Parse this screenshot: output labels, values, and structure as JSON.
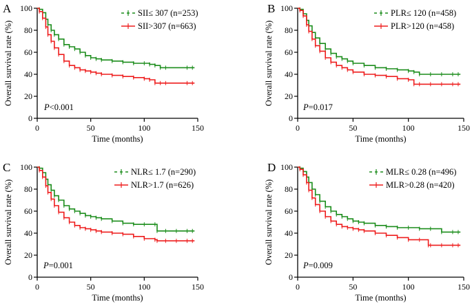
{
  "colors": {
    "green": "#1a8c1a",
    "red": "#ee1c1c",
    "axis": "#000000"
  },
  "chart_data": [
    {
      "panel_letter": "A",
      "type": "line",
      "subtype": "kaplan-meier",
      "xlabel": "Time (months)",
      "ylabel": "Overall survival rate  (%)",
      "xlim": [
        0,
        150
      ],
      "ylim": [
        0,
        100
      ],
      "xticks": [
        "0",
        "50",
        "100",
        "150"
      ],
      "yticks": [
        "0",
        "20",
        "40",
        "60",
        "80",
        "100"
      ],
      "p_value": {
        "prefix": "P",
        "text": "<0.001"
      },
      "legend_position": "top-right",
      "series": [
        {
          "name": "SII≤ 307 (n=253)",
          "color": "#1a8c1a",
          "dashed_legend": true,
          "x": [
            0,
            2,
            5,
            8,
            10,
            13,
            16,
            20,
            25,
            30,
            35,
            40,
            45,
            50,
            55,
            60,
            70,
            80,
            90,
            100,
            105,
            110,
            115,
            120,
            140,
            145,
            147
          ],
          "y": [
            100,
            99,
            96,
            90,
            85,
            80,
            76,
            72,
            67,
            65,
            63,
            60,
            57,
            55,
            54,
            53,
            52,
            51,
            50,
            50,
            49,
            48,
            46,
            46,
            46,
            46,
            46
          ]
        },
        {
          "name": "SII>307 (n=663)",
          "color": "#ee1c1c",
          "dashed_legend": false,
          "x": [
            0,
            2,
            5,
            8,
            10,
            13,
            16,
            20,
            25,
            30,
            35,
            40,
            45,
            50,
            55,
            60,
            70,
            80,
            90,
            100,
            105,
            110,
            115,
            120,
            140,
            145,
            147
          ],
          "y": [
            100,
            97,
            91,
            83,
            76,
            70,
            64,
            58,
            52,
            48,
            46,
            44,
            43,
            42,
            41,
            40,
            39,
            38,
            37,
            36,
            35,
            32,
            32,
            32,
            32,
            32,
            32
          ]
        }
      ]
    },
    {
      "panel_letter": "B",
      "type": "line",
      "subtype": "kaplan-meier",
      "xlabel": "Time (months)",
      "ylabel": "Overall survival rate  (%)",
      "xlim": [
        0,
        150
      ],
      "ylim": [
        0,
        100
      ],
      "xticks": [
        "0",
        "50",
        "100",
        "150"
      ],
      "yticks": [
        "0",
        "20",
        "40",
        "60",
        "80",
        "100"
      ],
      "p_value": {
        "prefix": "P",
        "text": "=0.017"
      },
      "legend_position": "top-right",
      "series": [
        {
          "name": "PLR≤ 120 (n=458)",
          "color": "#1a8c1a",
          "dashed_legend": true,
          "x": [
            0,
            2,
            5,
            8,
            10,
            13,
            16,
            20,
            25,
            30,
            35,
            40,
            45,
            50,
            60,
            70,
            80,
            90,
            100,
            105,
            110,
            120,
            130,
            140,
            145,
            147
          ],
          "y": [
            100,
            99,
            95,
            89,
            84,
            78,
            73,
            68,
            63,
            59,
            56,
            54,
            52,
            50,
            48,
            46,
            45,
            44,
            43,
            42,
            40,
            40,
            40,
            40,
            40,
            40
          ]
        },
        {
          "name": "PLR>120 (n=458)",
          "color": "#ee1c1c",
          "dashed_legend": false,
          "x": [
            0,
            2,
            5,
            8,
            10,
            13,
            16,
            20,
            25,
            30,
            35,
            40,
            45,
            50,
            60,
            70,
            80,
            90,
            100,
            105,
            110,
            120,
            130,
            140,
            145,
            147
          ],
          "y": [
            100,
            98,
            93,
            85,
            79,
            72,
            66,
            61,
            55,
            51,
            48,
            46,
            44,
            42,
            40,
            39,
            38,
            36,
            35,
            31,
            31,
            31,
            31,
            31,
            31,
            31
          ]
        }
      ]
    },
    {
      "panel_letter": "C",
      "type": "line",
      "subtype": "kaplan-meier",
      "xlabel": "Time (months)",
      "ylabel": "Overall survival rate  (%)",
      "xlim": [
        0,
        150
      ],
      "ylim": [
        0,
        100
      ],
      "xticks": [
        "0",
        "50",
        "100",
        "150"
      ],
      "yticks": [
        "0",
        "20",
        "40",
        "60",
        "80",
        "100"
      ],
      "p_value": {
        "prefix": "P",
        "text": "=0.001"
      },
      "legend_position": "top-right",
      "series": [
        {
          "name": "NLR≤ 1.7 (n=290)",
          "color": "#1a8c1a",
          "dashed_legend": true,
          "x": [
            0,
            2,
            5,
            8,
            10,
            13,
            16,
            20,
            25,
            30,
            35,
            40,
            45,
            50,
            55,
            60,
            70,
            80,
            90,
            100,
            110,
            112,
            120,
            130,
            140,
            145,
            147
          ],
          "y": [
            100,
            99,
            95,
            89,
            84,
            79,
            74,
            70,
            65,
            62,
            60,
            58,
            56,
            55,
            54,
            53,
            51,
            49,
            48,
            48,
            48,
            42,
            42,
            42,
            42,
            42,
            42
          ]
        },
        {
          "name": "NLR>1.7 (n=626)",
          "color": "#ee1c1c",
          "dashed_legend": false,
          "x": [
            0,
            2,
            5,
            8,
            10,
            13,
            16,
            20,
            25,
            30,
            35,
            40,
            45,
            50,
            55,
            60,
            70,
            80,
            90,
            100,
            110,
            112,
            120,
            130,
            140,
            145,
            147
          ],
          "y": [
            100,
            97,
            91,
            83,
            77,
            71,
            65,
            59,
            54,
            50,
            47,
            45,
            44,
            43,
            42,
            41,
            40,
            39,
            37,
            35,
            34,
            33,
            33,
            33,
            33,
            33,
            33
          ]
        }
      ]
    },
    {
      "panel_letter": "D",
      "type": "line",
      "subtype": "kaplan-meier",
      "xlabel": "Time (months)",
      "ylabel": "Overall survival rate  (%)",
      "xlim": [
        0,
        150
      ],
      "ylim": [
        0,
        100
      ],
      "xticks": [
        "0",
        "50",
        "100",
        "150"
      ],
      "yticks": [
        "0",
        "20",
        "40",
        "60",
        "80",
        "100"
      ],
      "p_value": {
        "prefix": "P",
        "text": "=0.009"
      },
      "legend_position": "top-right",
      "series": [
        {
          "name": "MLR≤ 0.28 (n=496)",
          "color": "#1a8c1a",
          "dashed_legend": true,
          "x": [
            0,
            2,
            5,
            8,
            10,
            13,
            16,
            20,
            25,
            30,
            35,
            40,
            45,
            50,
            55,
            60,
            70,
            80,
            90,
            100,
            110,
            120,
            130,
            140,
            145,
            147
          ],
          "y": [
            100,
            99,
            96,
            91,
            86,
            80,
            75,
            69,
            64,
            60,
            57,
            55,
            53,
            51,
            50,
            49,
            47,
            46,
            45,
            45,
            44,
            44,
            41,
            41,
            41,
            41
          ]
        },
        {
          "name": "MLR>0.28 (n=420)",
          "color": "#ee1c1c",
          "dashed_legend": false,
          "x": [
            0,
            2,
            5,
            8,
            10,
            13,
            16,
            20,
            25,
            30,
            35,
            40,
            45,
            50,
            55,
            60,
            70,
            80,
            90,
            100,
            110,
            118,
            120,
            130,
            140,
            145,
            147
          ],
          "y": [
            100,
            98,
            93,
            86,
            79,
            72,
            66,
            60,
            55,
            51,
            48,
            46,
            45,
            44,
            43,
            42,
            40,
            38,
            36,
            34,
            34,
            29,
            29,
            29,
            29,
            29,
            29
          ]
        }
      ]
    }
  ]
}
